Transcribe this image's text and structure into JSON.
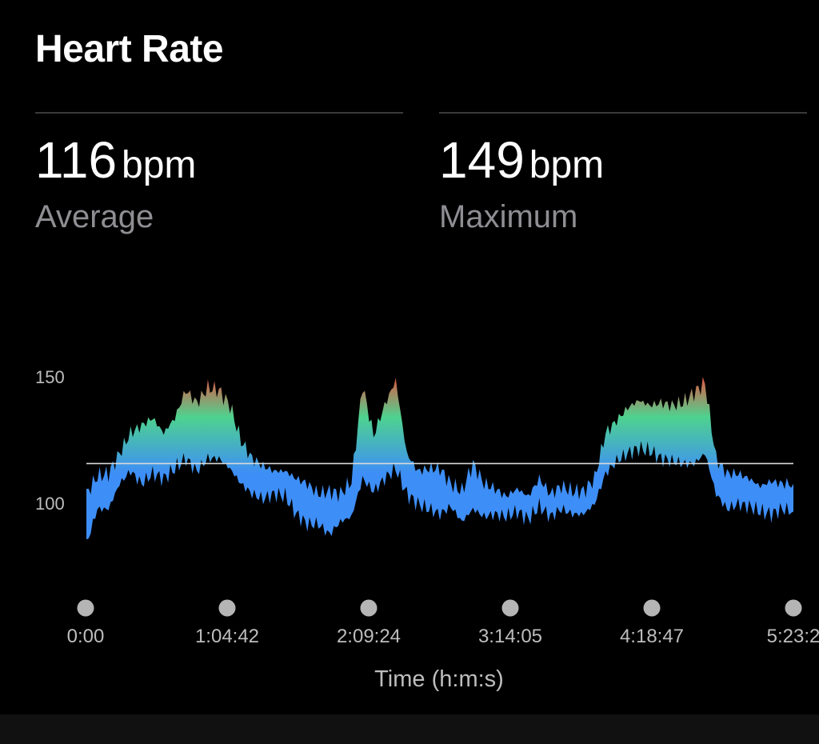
{
  "header": {
    "title": "Heart Rate"
  },
  "stats": {
    "average": {
      "value": "116",
      "unit": "bpm",
      "label": "Average"
    },
    "maximum": {
      "value": "149",
      "unit": "bpm",
      "label": "Maximum"
    }
  },
  "chart_data": {
    "type": "area",
    "ylim": [
      72,
      152
    ],
    "y_ticks": [
      100,
      150
    ],
    "x_tick_labels": [
      "0:00",
      "1:04:42",
      "2:09:24",
      "3:14:05",
      "4:18:47",
      "5:23:2"
    ],
    "xlabel": "Time (h:m:s)",
    "average_line": 116,
    "colors": {
      "low": "#3e8ef7",
      "mid": "#4ed28f",
      "high": "#f04a3c",
      "avg_line": "#d9d9d9",
      "tick_text": "#bdbdbd",
      "dot": "#b5b5b5"
    },
    "x_minutes": [
      0,
      5,
      10,
      15,
      20,
      25,
      30,
      35,
      40,
      45,
      50,
      55,
      60,
      65,
      70,
      75,
      80,
      85,
      90,
      95,
      100,
      105,
      110,
      115,
      120,
      125,
      130,
      135,
      140,
      145,
      150,
      155,
      160,
      165,
      170,
      175,
      180,
      185,
      190,
      195,
      200,
      205,
      210,
      215,
      220,
      225,
      230,
      235,
      240,
      245,
      250,
      255,
      260,
      265,
      270,
      275,
      280,
      285,
      290,
      295,
      300,
      305,
      310,
      315,
      320
    ],
    "upper": [
      104,
      111,
      112,
      120,
      128,
      131,
      134,
      128,
      134,
      145,
      140,
      146,
      145,
      139,
      125,
      118,
      115,
      113,
      113,
      110,
      108,
      104,
      105,
      104,
      109,
      147,
      127,
      139,
      149,
      120,
      113,
      114,
      114,
      108,
      105,
      116,
      108,
      106,
      103,
      106,
      103,
      110,
      104,
      107,
      105,
      105,
      110,
      128,
      133,
      138,
      141,
      139,
      140,
      139,
      140,
      144,
      148,
      118,
      112,
      112,
      110,
      107,
      109,
      108,
      108
    ],
    "lower": [
      84,
      98,
      98,
      108,
      113,
      108,
      112,
      110,
      114,
      118,
      113,
      118,
      118,
      114,
      108,
      104,
      102,
      104,
      103,
      96,
      92,
      92,
      88,
      93,
      95,
      110,
      105,
      110,
      114,
      104,
      100,
      98,
      96,
      99,
      93,
      98,
      95,
      96,
      95,
      97,
      94,
      99,
      95,
      98,
      96,
      96,
      100,
      112,
      117,
      120,
      122,
      121,
      118,
      117,
      116,
      116,
      120,
      104,
      98,
      100,
      99,
      97,
      96,
      98,
      97
    ]
  }
}
